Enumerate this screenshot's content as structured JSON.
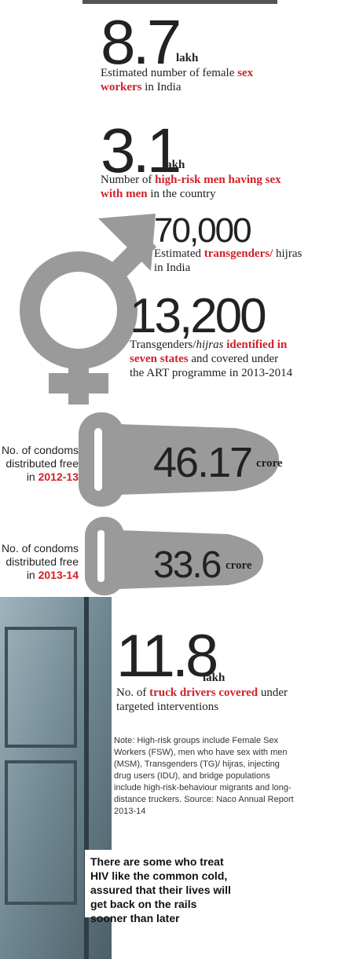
{
  "stats": [
    {
      "number": "8.7",
      "unit": "lakh",
      "before": "Estimated number of female",
      "highlight": "sex workers",
      "after": "in India"
    },
    {
      "number": "3.1",
      "unit": "lakh",
      "before": "Number of",
      "highlight": "high-risk men having sex with men",
      "after": "in the country"
    },
    {
      "number": "70,000",
      "before": "Estimated",
      "highlight": "transgenders/",
      "after": "hijras in India"
    },
    {
      "number": "13,200",
      "before": "Transgenders/",
      "before_italic": "hijras",
      "highlight": "identified in seven states",
      "after": "and covered under the ART programme in 2013-2014"
    }
  ],
  "condoms": [
    {
      "label": "No. of condoms distributed free in",
      "year": "2012-13",
      "value": "46.17",
      "unit": "crore"
    },
    {
      "label": "No. of condoms distributed free in",
      "year": "2013-14",
      "value": "33.6",
      "unit": "crore"
    }
  ],
  "truck": {
    "number": "11.8",
    "unit": "lakh",
    "before": "No. of",
    "highlight": "truck drivers covered",
    "after": "under targeted interventions"
  },
  "note": "Note: High-risk groups include Female Sex Workers (FSW), men who have sex with men (MSM), Transgenders (TG)/ hijras, injecting drug users (IDU), and bridge populations include high-risk-behaviour migrants and long-distance truckers. Source: Naco Annual Report 2013-14",
  "quote": "There are some who treat HIV like the common cold, assured that their lives will get back on the rails sooner than later"
}
